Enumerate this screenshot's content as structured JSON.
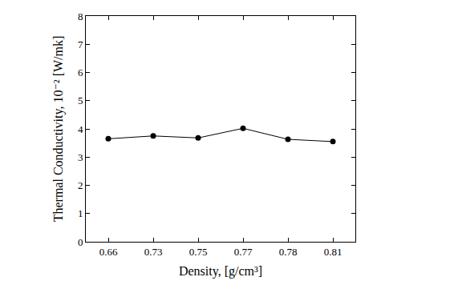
{
  "chart_data": {
    "type": "line",
    "x_label": "Density, [g/cm³]",
    "y_label": "Thermal Conductivity, 10⁻² [W/mk]",
    "categories": [
      "0.66",
      "0.73",
      "0.75",
      "0.77",
      "0.78",
      "0.81"
    ],
    "values": [
      3.65,
      3.75,
      3.68,
      4.02,
      3.63,
      3.55
    ],
    "color": "#000000",
    "marker": "circle",
    "line_style": "solid",
    "ylim": [
      0,
      8
    ],
    "yticks": [
      0,
      1,
      2,
      3,
      4,
      5,
      6,
      7,
      8
    ],
    "grid": false
  }
}
